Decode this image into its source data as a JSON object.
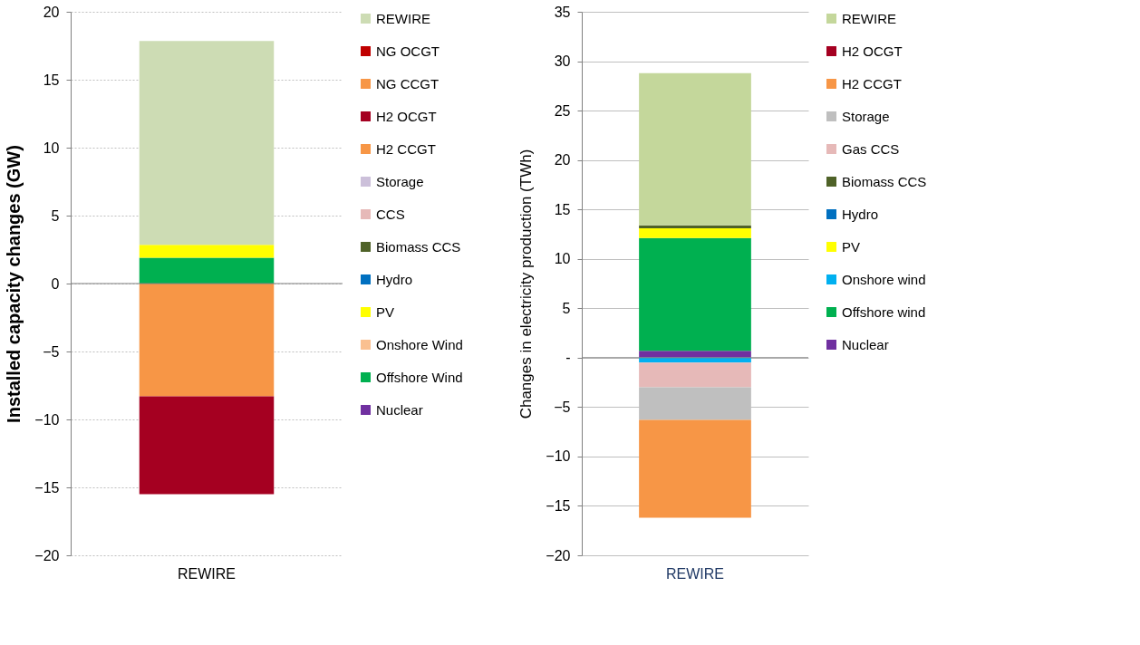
{
  "chart_data": [
    {
      "type": "bar",
      "stacked": true,
      "ylabel": "Installed capacity changes (GW)",
      "categories": [
        "REWIRE"
      ],
      "ylim": [
        -20,
        20
      ],
      "yticks": [
        -20,
        -15,
        -10,
        -5,
        0,
        5,
        10,
        15,
        20
      ],
      "grid": "y",
      "legend": "right",
      "series": [
        {
          "name": "Nuclear",
          "color": "#7030a0",
          "values": [
            0
          ]
        },
        {
          "name": "Offshore Wind",
          "color": "#00b050",
          "values": [
            1.9
          ]
        },
        {
          "name": "Onshore Wind",
          "color": "#fac090",
          "values": [
            0
          ]
        },
        {
          "name": "PV",
          "color": "#ffff00",
          "values": [
            0.95
          ]
        },
        {
          "name": "Hydro",
          "color": "#0070c0",
          "values": [
            0
          ]
        },
        {
          "name": "Biomass CCS",
          "color": "#4f6228",
          "values": [
            0
          ]
        },
        {
          "name": "CCS",
          "color": "#e6b9b8",
          "values": [
            0
          ]
        },
        {
          "name": "Storage",
          "color": "#ccc0da",
          "values": [
            0
          ]
        },
        {
          "name": "H2 CCGT",
          "color": "#f79646",
          "values": [
            -8.3
          ]
        },
        {
          "name": "H2 OCGT",
          "color": "#a50021",
          "values": [
            -7.2
          ]
        },
        {
          "name": "NG CCGT",
          "color": "#f79646",
          "values": [
            0
          ]
        },
        {
          "name": "NG OCGT",
          "color": "#c00000",
          "values": [
            0
          ]
        },
        {
          "name": "REWIRE",
          "color": "#cddcb4",
          "values": [
            15.0
          ]
        }
      ]
    },
    {
      "type": "bar",
      "stacked": true,
      "ylabel": "Changes in electricity production (TWh)",
      "categories": [
        "REWIRE"
      ],
      "ylim": [
        -20,
        35
      ],
      "yticks": [
        -20,
        -15,
        -10,
        -5,
        {
          "value": 0,
          "label": "-"
        },
        5,
        10,
        15,
        20,
        25,
        30,
        35
      ],
      "grid": "y",
      "legend": "right",
      "series": [
        {
          "name": "Nuclear",
          "color": "#7030a0",
          "values": [
            0.7
          ]
        },
        {
          "name": "Offshore wind",
          "color": "#00b050",
          "values": [
            11.4
          ]
        },
        {
          "name": "Onshore wind",
          "color": "#00b0f0",
          "values": [
            -0.5
          ]
        },
        {
          "name": "PV",
          "color": "#ffff00",
          "values": [
            1.0
          ]
        },
        {
          "name": "Hydro",
          "color": "#0070c0",
          "values": [
            0
          ]
        },
        {
          "name": "Biomass CCS",
          "color": "#4f6228",
          "values": [
            0.3
          ]
        },
        {
          "name": "Gas CCS",
          "color": "#e6b9b8",
          "values": [
            -2.5
          ]
        },
        {
          "name": "Storage",
          "color": "#bfbfbf",
          "values": [
            -3.3
          ]
        },
        {
          "name": "H2 CCGT",
          "color": "#f79646",
          "values": [
            -9.9
          ]
        },
        {
          "name": "H2 OCGT",
          "color": "#a50021",
          "values": [
            0
          ]
        },
        {
          "name": "REWIRE",
          "color": "#c4d79b",
          "values": [
            15.4
          ]
        }
      ]
    }
  ]
}
